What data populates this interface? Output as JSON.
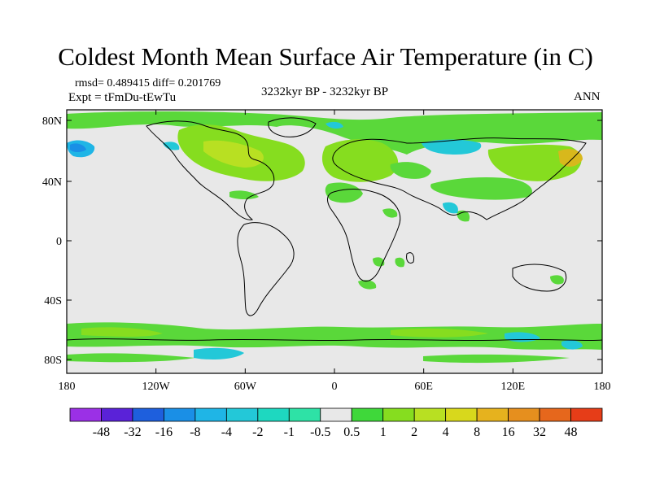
{
  "title": "Coldest Month Mean Surface Air Temperature (in C)",
  "stats": "rmsd= 0.489415 diff= 0.201769",
  "experiment": "Expt = tFmDu-tEwTu",
  "period": "3232kyr BP - 3232kyr BP",
  "season": "ANN",
  "axes": {
    "lat_ticks": [
      "80N",
      "40N",
      "0",
      "40S",
      "80S"
    ],
    "lon_ticks": [
      "180",
      "120W",
      "60W",
      "0",
      "60E",
      "120E",
      "180"
    ]
  },
  "colorbar": {
    "colors": [
      "#9b30e6",
      "#5a22d8",
      "#1e5fdd",
      "#1a8fe6",
      "#1fb5e6",
      "#23c8d8",
      "#1ed8c0",
      "#2ee2a6",
      "#e8e8e8",
      "#3fd83a",
      "#86dd1f",
      "#b8e022",
      "#d8d81c",
      "#e6b21e",
      "#e68f1e",
      "#e6671c",
      "#e63d18"
    ],
    "labels": [
      "-48",
      "-32",
      "-16",
      "-8",
      "-4",
      "-2",
      "-1",
      "-0.5",
      "0.5",
      "1",
      "2",
      "4",
      "8",
      "16",
      "32",
      "48"
    ]
  },
  "map": {
    "ocean_color": "#e8e8e8",
    "outline_color": "#000000"
  }
}
